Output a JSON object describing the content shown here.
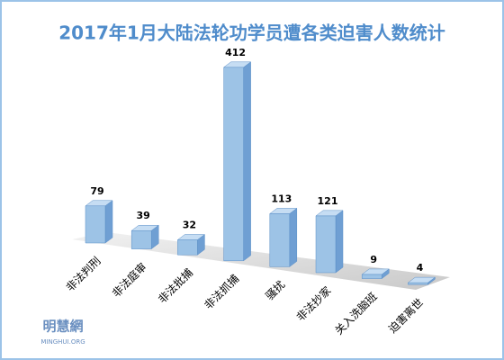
{
  "chart_data": {
    "type": "bar3d",
    "title": "2017年1月大陆法轮功学员遭各类迫害人数统计",
    "categories": [
      "非法判刑",
      "非法庭审",
      "非法批捕",
      "非法抓捕",
      "骚扰",
      "非法抄家",
      "关入洗脑班",
      "迫害离世"
    ],
    "values": [
      79,
      39,
      32,
      412,
      113,
      121,
      9,
      4
    ],
    "color": "#9dc3e6",
    "watermark": "明慧網",
    "watermark_sub": "MINGHUI.ORG"
  }
}
